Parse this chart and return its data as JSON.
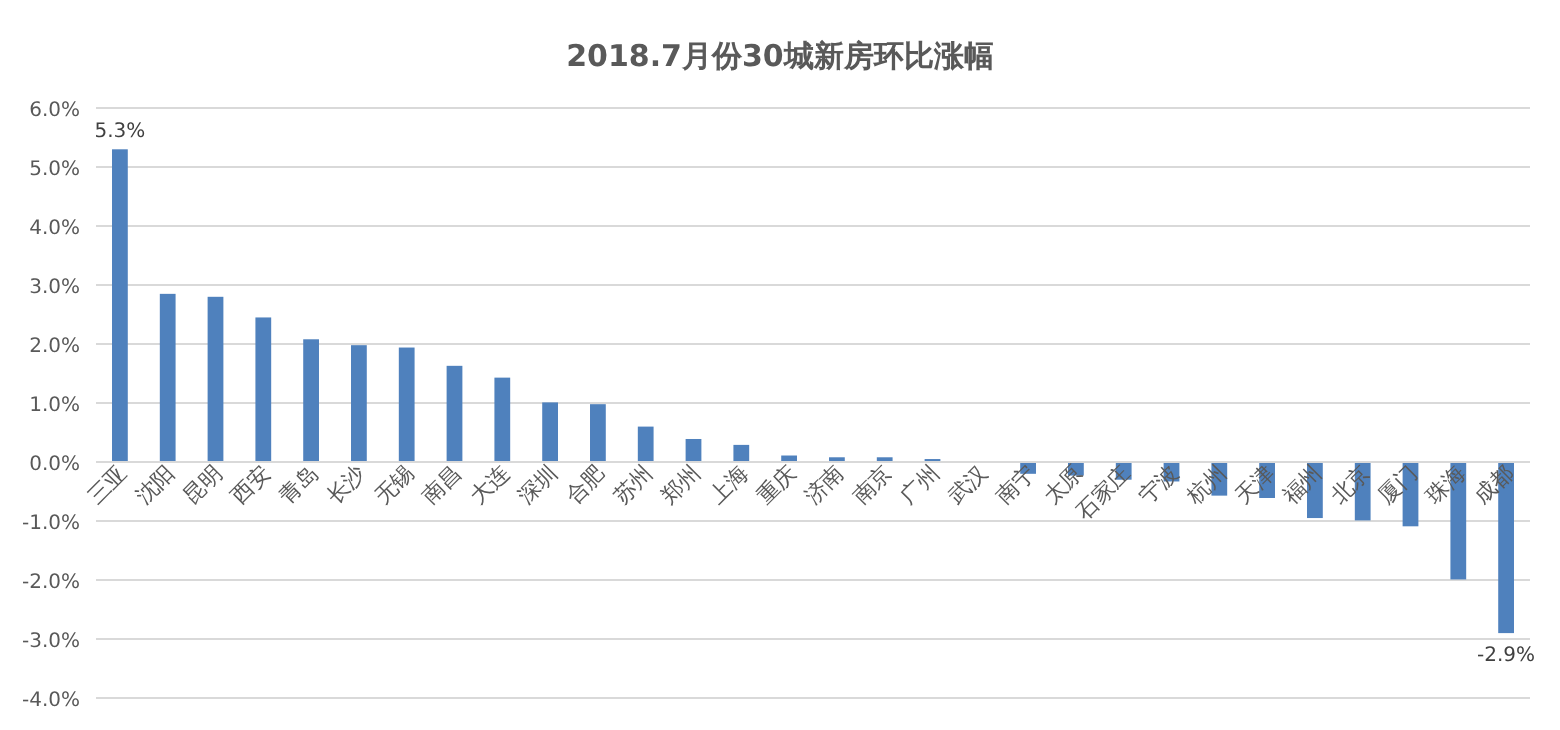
{
  "chart_data": {
    "type": "bar",
    "title": "2018.7月份30城新房环比涨幅",
    "categories": [
      "三亚",
      "沈阳",
      "昆明",
      "西安",
      "青岛",
      "长沙",
      "无锡",
      "南昌",
      "大连",
      "深圳",
      "合肥",
      "苏州",
      "郑州",
      "上海",
      "重庆",
      "济南",
      "南京",
      "广州",
      "武汉",
      "南宁",
      "太原",
      "石家庄",
      "宁波",
      "杭州",
      "天津",
      "福州",
      "北京",
      "厦门",
      "珠海",
      "成都"
    ],
    "values": [
      5.3,
      2.85,
      2.8,
      2.45,
      2.08,
      1.98,
      1.94,
      1.63,
      1.43,
      1.01,
      0.98,
      0.6,
      0.39,
      0.29,
      0.11,
      0.08,
      0.08,
      0.05,
      0,
      -0.2,
      -0.23,
      -0.3,
      -0.33,
      -0.57,
      -0.61,
      -0.95,
      -0.99,
      -1.09,
      -1.99,
      -2.9
    ],
    "value_labels": [
      "5.3%",
      null,
      null,
      null,
      null,
      null,
      null,
      null,
      null,
      null,
      null,
      null,
      null,
      null,
      null,
      null,
      null,
      null,
      null,
      null,
      null,
      null,
      null,
      null,
      null,
      null,
      null,
      null,
      null,
      "-2.9%"
    ],
    "color": "#4f81bd",
    "ylim": [
      -4,
      6
    ],
    "yticks": [
      {
        "value": 6,
        "label": "6.0%"
      },
      {
        "value": 5,
        "label": "5.0%"
      },
      {
        "value": 4,
        "label": "4.0%"
      },
      {
        "value": 3,
        "label": "3.0%"
      },
      {
        "value": 2,
        "label": "2.0%"
      },
      {
        "value": 1,
        "label": "1.0%"
      },
      {
        "value": 0,
        "label": "0.0%"
      },
      {
        "value": -1,
        "label": "-1.0%"
      },
      {
        "value": -2,
        "label": "-2.0%"
      },
      {
        "value": -3,
        "label": "-3.0%"
      },
      {
        "value": -4,
        "label": "-4.0%"
      }
    ],
    "grid": "y"
  }
}
